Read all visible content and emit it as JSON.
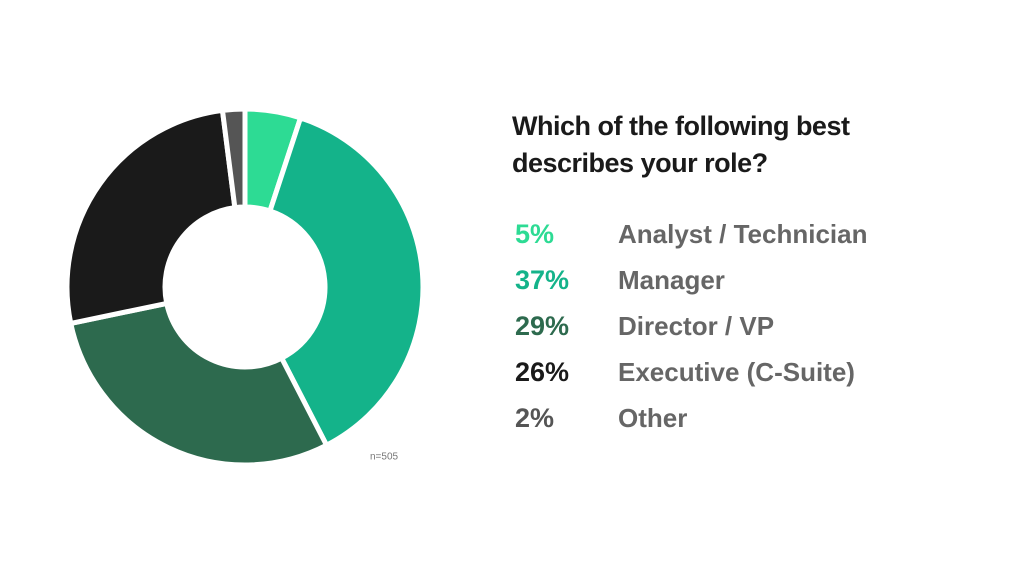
{
  "chart_data": {
    "type": "donut",
    "title": "Which of the following best describes your role?",
    "categories": [
      "Analyst / Technician",
      "Manager",
      "Director / VP",
      "Executive (C-Suite)",
      "Other"
    ],
    "values": [
      5,
      37,
      29,
      26,
      2
    ],
    "value_labels": [
      "5%",
      "37%",
      "29%",
      "26%",
      "2%"
    ],
    "colors": [
      "#2ddb94",
      "#14b38a",
      "#2d6a4e",
      "#1a1a1a",
      "#555555"
    ],
    "annotation": "n=505"
  }
}
